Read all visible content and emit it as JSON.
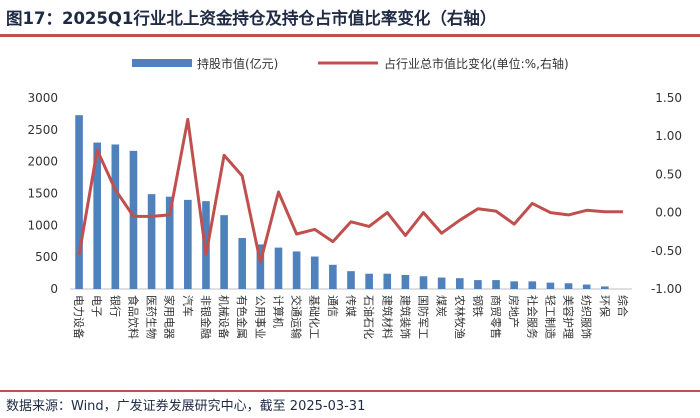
{
  "title": "图17：2025Q1行业北上资金持仓及持仓占市值比率变化（右轴）",
  "source": "数据来源：Wind，广发证券发展研究中心，截至 2025-03-31",
  "colors": {
    "bar": "#4f81bd",
    "line": "#c0504d",
    "accent": "#c0504d",
    "text": "#1f2a44"
  },
  "chart_data": {
    "type": "bar",
    "categories": [
      "电力设备",
      "电子",
      "银行",
      "食品饮料",
      "医药生物",
      "家用电器",
      "汽车",
      "非银金融",
      "机械设备",
      "有色金属",
      "公用事业",
      "计算机",
      "交通运输",
      "基础化工",
      "通信",
      "传媒",
      "石油石化",
      "建筑材料",
      "建筑装饰",
      "国防军工",
      "煤炭",
      "农林牧渔",
      "钢铁",
      "商贸零售",
      "房地产",
      "社会服务",
      "轻工制造",
      "美容护理",
      "纺织服饰",
      "环保",
      "综合"
    ],
    "series": [
      {
        "name": "持股市值(亿元)",
        "type": "bar",
        "axis": "left",
        "values": [
          2730,
          2300,
          2270,
          2170,
          1490,
          1450,
          1400,
          1380,
          1160,
          800,
          700,
          650,
          590,
          510,
          380,
          280,
          240,
          240,
          220,
          200,
          180,
          170,
          140,
          140,
          120,
          120,
          100,
          90,
          70,
          40,
          0
        ]
      },
      {
        "name": "占行业总市值比变化(单位:%,右轴)",
        "type": "line",
        "axis": "right",
        "values": [
          -0.55,
          0.82,
          0.3,
          -0.05,
          -0.05,
          -0.03,
          1.22,
          -0.55,
          0.75,
          0.48,
          -0.65,
          0.27,
          -0.28,
          -0.22,
          -0.38,
          -0.12,
          -0.18,
          0.0,
          -0.3,
          0.0,
          -0.27,
          -0.1,
          0.05,
          0.02,
          -0.15,
          0.12,
          0.0,
          -0.03,
          0.03,
          0.01,
          0.01
        ]
      }
    ],
    "left_axis": {
      "min": 0,
      "max": 3000,
      "ticks": [
        0,
        500,
        1000,
        1500,
        2000,
        2500,
        3000
      ]
    },
    "right_axis": {
      "min": -1.0,
      "max": 1.5,
      "ticks": [
        "-1.00",
        "-0.50",
        "0.00",
        "0.50",
        "1.00",
        "1.50"
      ]
    },
    "legend_position": "top"
  }
}
